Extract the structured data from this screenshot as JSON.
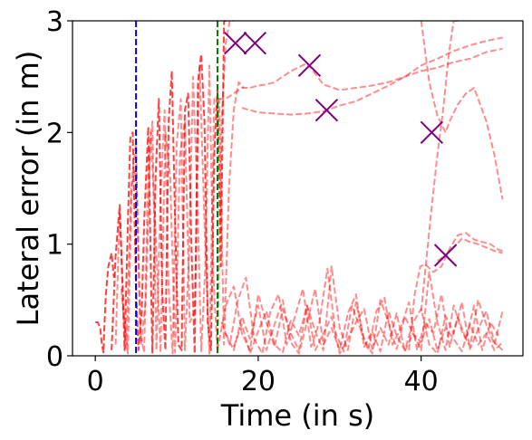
{
  "chart_data": {
    "type": "line",
    "title": "",
    "xlabel": "Time (in s)",
    "ylabel": "Lateral error (in m)",
    "xlim": [
      -2.8,
      52.5
    ],
    "ylim": [
      0,
      3
    ],
    "xticks": [
      0,
      20,
      40
    ],
    "yticks": [
      0,
      1,
      2,
      3
    ],
    "grid": false,
    "series_color": "#ff0000",
    "vlines": [
      {
        "x": 5,
        "color": "#0000ff"
      },
      {
        "x": 15,
        "color": "#008000"
      }
    ],
    "failure_markers": {
      "color": "#800080",
      "marker": "x",
      "points": [
        {
          "x": 17.2,
          "y": 2.8
        },
        {
          "x": 19.6,
          "y": 2.8
        },
        {
          "x": 26.3,
          "y": 2.6
        },
        {
          "x": 28.4,
          "y": 2.2
        },
        {
          "x": 41.3,
          "y": 2.0
        },
        {
          "x": 43.0,
          "y": 0.9
        }
      ]
    },
    "series": [
      {
        "x": [
          0.0,
          0.3,
          0.6,
          0.8,
          1.0,
          1.1,
          1.3,
          1.6,
          2.0,
          2.3
        ],
        "y": [
          0.3,
          0.3,
          0.25,
          0.1,
          0.03,
          0.25,
          0.55,
          0.8,
          0.92,
          0.7
        ]
      },
      {
        "x": [
          2.0,
          2.5,
          3.0,
          3.3,
          3.6,
          4.0,
          4.3,
          4.6,
          5.0,
          5.3,
          5.7,
          6.0,
          6.5,
          7.0,
          7.4,
          7.8,
          8.2,
          8.6,
          9.0,
          9.4,
          9.8,
          10.2,
          10.6,
          11.0,
          11.4,
          11.8,
          12.2,
          12.6,
          13.0,
          13.4,
          13.8,
          14.2,
          14.6,
          15.0,
          15.4,
          15.8,
          16.2
        ],
        "y": [
          0.05,
          0.9,
          1.35,
          0.7,
          0.05,
          1.2,
          1.95,
          2.0,
          0.6,
          0.05,
          0.4,
          1.2,
          2.05,
          0.02,
          1.6,
          2.3,
          0.6,
          0.05,
          2.1,
          2.55,
          1.2,
          0.1,
          0.05,
          2.2,
          2.35,
          1.0,
          0.02,
          2.45,
          2.7,
          2.1,
          0.3,
          0.05,
          1.8,
          2.4,
          0.8,
          3.0,
          3.0
        ]
      },
      {
        "x": [
          2.5,
          3.0,
          3.5,
          4.0,
          4.5,
          5.0,
          5.5,
          6.0,
          6.5,
          7.0,
          7.5,
          8.0,
          8.5,
          9.0,
          9.5,
          10.0,
          10.5,
          11.0,
          11.5,
          12.0,
          12.5,
          13.0,
          13.5,
          14.0,
          14.5,
          15.0,
          15.5,
          16.0,
          16.5,
          17.0
        ],
        "y": [
          0.1,
          1.3,
          0.4,
          0.02,
          1.6,
          1.9,
          0.2,
          0.03,
          1.7,
          2.1,
          0.05,
          1.4,
          2.2,
          0.6,
          0.02,
          1.9,
          2.3,
          0.05,
          0.9,
          2.5,
          1.5,
          0.04,
          0.8,
          2.6,
          0.7,
          0.03,
          2.1,
          2.8,
          3.0,
          3.0
        ]
      },
      {
        "x": [
          3.2,
          3.8,
          4.4,
          5.0,
          5.6,
          6.2,
          6.8,
          7.4,
          8.0,
          8.6,
          9.2,
          9.8,
          10.4,
          11.0,
          11.6,
          12.2,
          12.8,
          13.4,
          14.0,
          14.6,
          15.2,
          15.8,
          16.4,
          17.0,
          17.6,
          18.2
        ],
        "y": [
          0.6,
          0.05,
          1.5,
          1.7,
          0.1,
          0.5,
          2.0,
          1.1,
          0.03,
          2.0,
          1.6,
          0.03,
          1.8,
          2.1,
          0.3,
          0.4,
          2.6,
          1.2,
          0.02,
          2.3,
          2.3,
          0.1,
          1.5,
          2.2,
          2.45,
          2.4
        ]
      },
      {
        "x": [
          15.0,
          16.0,
          17.0,
          18.0,
          19.0,
          20.0,
          21.0,
          22.0,
          24.0,
          26.0,
          28.0,
          30.0,
          32.0,
          34.0,
          36.0,
          38.0,
          40.0,
          42.0,
          44.0,
          46.0,
          48.0,
          50.0
        ],
        "y": [
          2.3,
          2.3,
          2.35,
          2.4,
          2.4,
          2.42,
          2.43,
          2.45,
          2.55,
          2.62,
          2.43,
          2.38,
          2.4,
          2.42,
          2.45,
          2.5,
          2.55,
          2.58,
          2.63,
          2.66,
          2.72,
          2.75
        ]
      },
      {
        "x": [
          18.0,
          19.0,
          20.0,
          22.0,
          24.0,
          26.0,
          28.0,
          30.0,
          32.0,
          34.0,
          36.0,
          38.0,
          40.0,
          42.0,
          44.0,
          46.0,
          48.0,
          50.0
        ],
        "y": [
          2.22,
          2.2,
          2.18,
          2.17,
          2.16,
          2.17,
          2.19,
          2.24,
          2.28,
          2.35,
          2.42,
          2.5,
          2.6,
          2.66,
          2.73,
          2.78,
          2.82,
          2.85
        ]
      },
      {
        "x": [
          40.0,
          41.0,
          42.0,
          43.0,
          43.5,
          44.5,
          45.5,
          46.5,
          48.0,
          49.0,
          50.0
        ],
        "y": [
          3.0,
          2.45,
          2.15,
          2.0,
          2.1,
          2.25,
          2.35,
          2.4,
          2.1,
          1.8,
          1.4
        ]
      },
      {
        "x": [
          38.5,
          39.2,
          39.9,
          40.5,
          41.5,
          42.5,
          43.5,
          44.5,
          45.5,
          46.5,
          47.5,
          48.5,
          49.5,
          50.0
        ],
        "y": [
          0.05,
          0.55,
          0.8,
          0.82,
          0.75,
          0.8,
          0.96,
          1.08,
          1.1,
          1.04,
          1.02,
          1.0,
          0.95,
          0.94
        ]
      },
      {
        "x": [
          42.0,
          43.0,
          44.0,
          45.0,
          46.0,
          47.0,
          48.0,
          49.0,
          50.0
        ],
        "y": [
          0.85,
          0.9,
          0.97,
          1.05,
          1.02,
          1.0,
          0.97,
          0.94,
          0.92
        ]
      },
      {
        "x": [
          40.0,
          40.7,
          41.4,
          42.0,
          42.7,
          43.4,
          44.0,
          44.8
        ],
        "y": [
          0.4,
          0.9,
          1.4,
          1.8,
          2.2,
          2.7,
          3.0,
          3.0
        ]
      },
      {
        "x": [
          15.0,
          16.0,
          17.0,
          18.0,
          19.0,
          20.0,
          21.0,
          22.0,
          23.0,
          24.0,
          25.0,
          26.0,
          27.0,
          28.0,
          29.0,
          30.0,
          31.0,
          32.0,
          33.0,
          34.0,
          35.0,
          36.0,
          37.0,
          38.0,
          39.0,
          40.0,
          41.0,
          42.0,
          43.0,
          44.0,
          45.0,
          46.0,
          47.0,
          48.0,
          49.0,
          50.0
        ],
        "y": [
          0.05,
          0.45,
          0.62,
          0.2,
          0.05,
          0.55,
          0.3,
          0.08,
          0.42,
          0.2,
          0.05,
          0.45,
          0.22,
          0.05,
          0.8,
          0.25,
          0.05,
          0.48,
          0.15,
          0.02,
          0.5,
          0.3,
          0.06,
          0.35,
          0.2,
          0.05,
          0.75,
          0.3,
          0.05,
          0.45,
          0.22,
          0.08,
          0.5,
          0.28,
          0.1,
          0.4
        ]
      },
      {
        "x": [
          15.5,
          16.5,
          17.5,
          18.5,
          19.5,
          20.5,
          21.5,
          22.5,
          23.5,
          24.5,
          25.5,
          26.5,
          27.5,
          28.5,
          29.5,
          30.5,
          31.5,
          32.5,
          33.5,
          34.5,
          35.5,
          36.5,
          37.5,
          38.5,
          39.5,
          40.5,
          41.5,
          42.5,
          43.5,
          44.5,
          45.5,
          46.5,
          47.5,
          48.5,
          49.5
        ],
        "y": [
          0.3,
          0.1,
          0.5,
          0.7,
          0.15,
          0.02,
          0.4,
          0.55,
          0.1,
          0.35,
          0.6,
          0.08,
          0.3,
          0.78,
          0.2,
          0.04,
          0.45,
          0.25,
          0.05,
          0.4,
          0.52,
          0.1,
          0.25,
          0.48,
          0.05,
          0.3,
          0.2,
          0.55,
          0.08,
          0.35,
          0.15,
          0.45,
          0.05,
          0.3,
          0.18
        ]
      },
      {
        "x": [
          16.0,
          17.0,
          18.0,
          19.0,
          20.0,
          21.0,
          22.0,
          23.0,
          24.0,
          25.0,
          26.0,
          27.0,
          28.0,
          29.0,
          30.0,
          31.0,
          32.0,
          33.0,
          34.0,
          35.0,
          36.0,
          37.0,
          38.0,
          39.0,
          40.0,
          41.0,
          42.0,
          43.0,
          44.0,
          45.0,
          46.0,
          47.0,
          48.0,
          49.0,
          50.0
        ],
        "y": [
          0.2,
          0.05,
          0.35,
          0.15,
          0.45,
          0.05,
          0.28,
          0.5,
          0.12,
          0.02,
          0.3,
          0.6,
          0.1,
          0.25,
          0.05,
          0.38,
          0.55,
          0.08,
          0.22,
          0.04,
          0.4,
          0.18,
          0.05,
          0.3,
          0.42,
          0.1,
          0.02,
          0.36,
          0.2,
          0.48,
          0.06,
          0.24,
          0.4,
          0.12,
          0.05
        ]
      },
      {
        "x": [
          17.0,
          18.0,
          19.0,
          20.0,
          21.0,
          22.0,
          23.0,
          24.0,
          25.0,
          26.0,
          27.0,
          28.0,
          29.0,
          30.0,
          31.0,
          32.0,
          33.0,
          34.0,
          35.0,
          36.0,
          37.0,
          38.0,
          39.0,
          40.0,
          41.0,
          42.0,
          43.0,
          44.0,
          45.0,
          46.0,
          47.0,
          48.0,
          49.0,
          50.0
        ],
        "y": [
          0.08,
          0.28,
          0.02,
          0.22,
          0.4,
          0.1,
          0.03,
          0.32,
          0.18,
          0.45,
          0.05,
          0.2,
          0.35,
          0.02,
          0.15,
          0.3,
          0.42,
          0.06,
          0.25,
          0.1,
          0.38,
          0.04,
          0.2,
          0.12,
          0.33,
          0.05,
          0.25,
          0.15,
          0.04,
          0.28,
          0.1,
          0.2,
          0.05,
          0.12
        ]
      }
    ]
  }
}
